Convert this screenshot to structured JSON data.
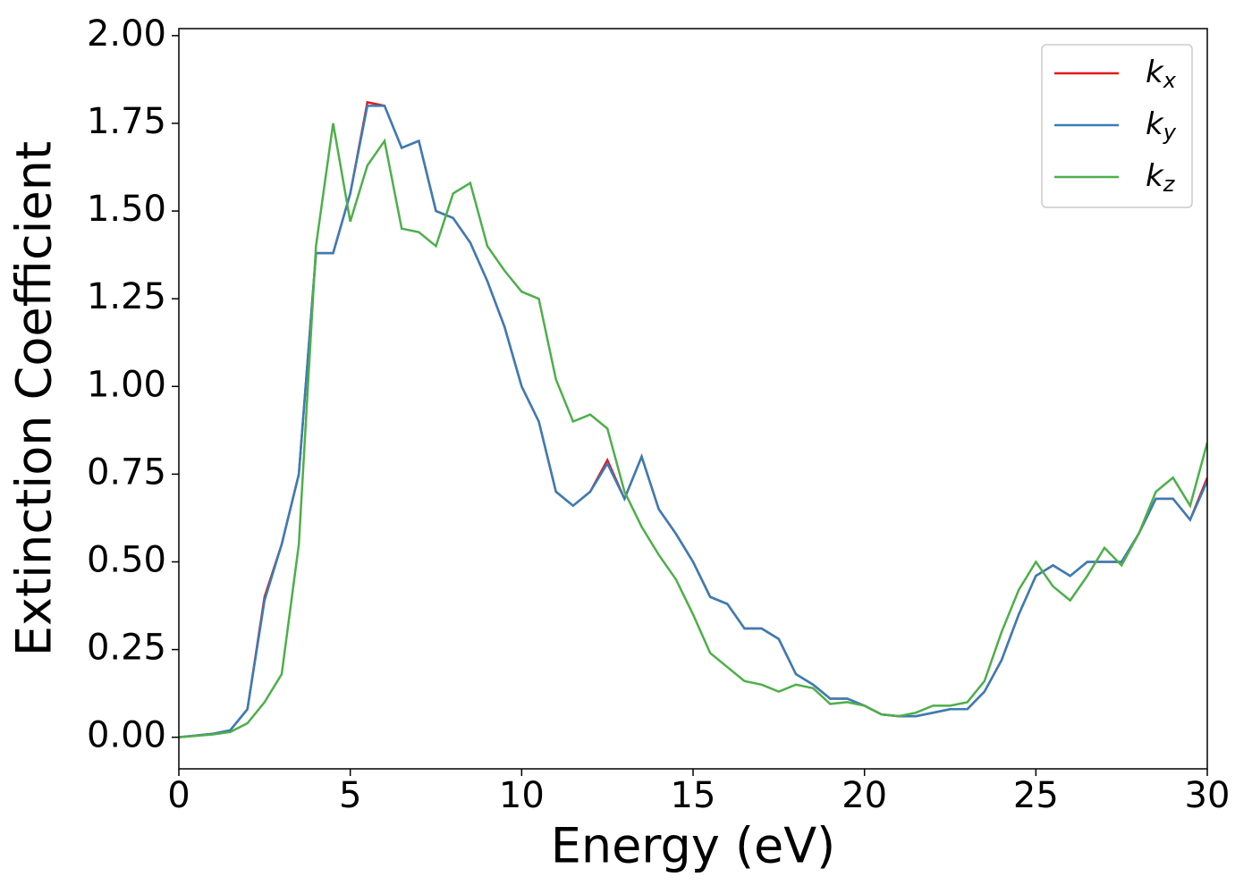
{
  "chart_data": {
    "type": "line",
    "xlabel": "Energy (eV)",
    "ylabel": "Extinction Coefficient",
    "x": [
      0,
      0.5,
      1,
      1.5,
      2,
      2.5,
      3,
      3.5,
      4,
      4.5,
      5,
      5.5,
      6,
      6.5,
      7,
      7.5,
      8,
      8.5,
      9,
      9.5,
      10,
      10.5,
      11,
      11.5,
      12,
      12.5,
      13,
      13.5,
      14,
      14.5,
      15,
      15.5,
      16,
      16.5,
      17,
      17.5,
      18,
      18.5,
      19,
      19.5,
      20,
      20.5,
      21,
      21.5,
      22,
      22.5,
      23,
      23.5,
      24,
      24.5,
      25,
      25.5,
      26,
      26.5,
      27,
      27.5,
      28,
      28.5,
      29,
      29.5,
      30
    ],
    "series": [
      {
        "name": "kx",
        "color": "#e41a1c",
        "values": [
          0,
          0.005,
          0.01,
          0.02,
          0.08,
          0.4,
          0.55,
          0.75,
          1.38,
          1.38,
          1.55,
          1.81,
          1.8,
          1.68,
          1.7,
          1.5,
          1.48,
          1.41,
          1.3,
          1.17,
          1.0,
          0.9,
          0.7,
          0.66,
          0.7,
          0.79,
          0.68,
          0.8,
          0.65,
          0.58,
          0.5,
          0.4,
          0.38,
          0.31,
          0.31,
          0.28,
          0.18,
          0.15,
          0.11,
          0.11,
          0.09,
          0.065,
          0.06,
          0.06,
          0.07,
          0.08,
          0.08,
          0.13,
          0.22,
          0.35,
          0.46,
          0.49,
          0.46,
          0.5,
          0.5,
          0.5,
          0.58,
          0.68,
          0.68,
          0.62,
          0.74
        ]
      },
      {
        "name": "ky",
        "color": "#377eb8",
        "values": [
          0,
          0.005,
          0.01,
          0.02,
          0.08,
          0.39,
          0.55,
          0.75,
          1.38,
          1.38,
          1.55,
          1.8,
          1.8,
          1.68,
          1.7,
          1.5,
          1.48,
          1.41,
          1.3,
          1.17,
          1.0,
          0.9,
          0.7,
          0.66,
          0.7,
          0.78,
          0.68,
          0.8,
          0.65,
          0.58,
          0.5,
          0.4,
          0.38,
          0.31,
          0.31,
          0.28,
          0.18,
          0.15,
          0.11,
          0.11,
          0.09,
          0.065,
          0.06,
          0.06,
          0.07,
          0.08,
          0.08,
          0.13,
          0.22,
          0.35,
          0.46,
          0.49,
          0.46,
          0.5,
          0.5,
          0.5,
          0.58,
          0.68,
          0.68,
          0.62,
          0.73
        ]
      },
      {
        "name": "kz",
        "color": "#4daf4a",
        "values": [
          0,
          0.004,
          0.008,
          0.015,
          0.04,
          0.1,
          0.18,
          0.55,
          1.4,
          1.75,
          1.47,
          1.63,
          1.7,
          1.45,
          1.44,
          1.4,
          1.55,
          1.58,
          1.4,
          1.33,
          1.27,
          1.25,
          1.02,
          0.9,
          0.92,
          0.88,
          0.7,
          0.6,
          0.52,
          0.45,
          0.35,
          0.24,
          0.2,
          0.16,
          0.15,
          0.13,
          0.15,
          0.14,
          0.095,
          0.1,
          0.09,
          0.065,
          0.06,
          0.07,
          0.09,
          0.09,
          0.1,
          0.16,
          0.3,
          0.42,
          0.5,
          0.43,
          0.39,
          0.46,
          0.54,
          0.49,
          0.58,
          0.7,
          0.74,
          0.66,
          0.84
        ]
      }
    ],
    "xlim": [
      0,
      30
    ],
    "xticks": [
      0,
      5,
      10,
      15,
      20,
      25,
      30
    ],
    "ylim": [
      -0.09,
      2.02
    ],
    "yticks": [
      {
        "value": 0,
        "label": "0.00"
      },
      {
        "value": 0.25,
        "label": "0.25"
      },
      {
        "value": 0.5,
        "label": "0.50"
      },
      {
        "value": 0.75,
        "label": "0.75"
      },
      {
        "value": 1,
        "label": "1.00"
      },
      {
        "value": 1.25,
        "label": "1.25"
      },
      {
        "value": 1.5,
        "label": "1.50"
      },
      {
        "value": 1.75,
        "label": "1.75"
      },
      {
        "value": 2,
        "label": "2.00"
      }
    ],
    "grid": false,
    "legend": "upper right"
  }
}
